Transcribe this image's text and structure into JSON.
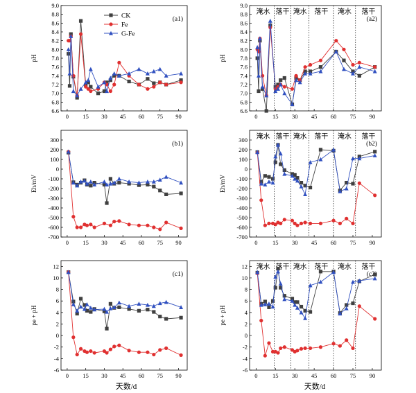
{
  "figure": {
    "xlabel_left": "天数/d",
    "xlabel_right": "天数/d"
  },
  "colors": {
    "CK": "#404040",
    "Fe": "#e03030",
    "G-Fe": "#3050c0"
  },
  "chart_data": [
    {
      "id": "a1",
      "panel_label": "(a1)",
      "type": "line",
      "ylabel": "pH",
      "ylim": [
        6.6,
        9.0
      ],
      "yticks": [
        6.6,
        6.8,
        7.0,
        7.2,
        7.4,
        7.6,
        7.8,
        8.0,
        8.2,
        8.4,
        8.6,
        8.8,
        9.0
      ],
      "xlim": [
        -5,
        97
      ],
      "xticks": [
        0,
        15,
        30,
        45,
        60,
        75,
        90
      ],
      "legend": {
        "position": "top-center",
        "entries": [
          "CK",
          "Fe",
          "G-Fe"
        ]
      },
      "phases": [],
      "series": [
        {
          "name": "CK",
          "marker": "square",
          "x": [
            1,
            2,
            3,
            5,
            8,
            11,
            15,
            17,
            19,
            25,
            30,
            32,
            35,
            38,
            42,
            50,
            58,
            65,
            70,
            75,
            80,
            92
          ],
          "y": [
            7.9,
            7.17,
            8.35,
            7.38,
            6.9,
            8.65,
            7.18,
            7.25,
            7.15,
            7.0,
            7.05,
            7.25,
            7.3,
            7.4,
            7.4,
            7.27,
            7.2,
            7.33,
            7.23,
            7.25,
            7.2,
            7.3
          ]
        },
        {
          "name": "Fe",
          "marker": "circle",
          "x": [
            1,
            2,
            3,
            5,
            8,
            11,
            15,
            17,
            19,
            25,
            30,
            32,
            35,
            38,
            42,
            50,
            58,
            65,
            70,
            75,
            80,
            92
          ],
          "y": [
            8.2,
            8.2,
            8.3,
            7.4,
            6.95,
            8.35,
            7.15,
            7.1,
            7.05,
            7.1,
            7.25,
            7.2,
            7.05,
            7.2,
            7.7,
            7.4,
            7.2,
            7.1,
            7.15,
            7.25,
            7.2,
            7.25
          ]
        },
        {
          "name": "G-Fe",
          "marker": "triangle",
          "x": [
            1,
            2,
            3,
            5,
            8,
            11,
            15,
            17,
            19,
            25,
            30,
            32,
            35,
            38,
            42,
            50,
            58,
            65,
            70,
            75,
            80,
            92
          ],
          "y": [
            8.0,
            7.45,
            8.3,
            7.05,
            6.95,
            7.1,
            7.25,
            7.3,
            7.55,
            7.15,
            7.25,
            7.05,
            7.35,
            7.45,
            7.4,
            7.45,
            7.55,
            7.45,
            7.5,
            7.55,
            7.4,
            7.45
          ]
        }
      ]
    },
    {
      "id": "a2",
      "panel_label": "(a2)",
      "type": "line",
      "ylabel": "pH",
      "ylim": [
        6.6,
        9.0
      ],
      "yticks": [
        6.6,
        6.8,
        7.0,
        7.2,
        7.4,
        7.6,
        7.8,
        8.0,
        8.2,
        8.4,
        8.6,
        8.8,
        9.0
      ],
      "xlim": [
        -5,
        97
      ],
      "xticks": [
        0,
        15,
        30,
        45,
        60,
        75,
        90
      ],
      "phases": [
        "淹水",
        "落干",
        "淹水",
        "落干",
        "淹水",
        "落干"
      ],
      "phase_boundaries": [
        14,
        27,
        41,
        60,
        77
      ],
      "series": [
        {
          "name": "CK",
          "marker": "square",
          "x": [
            1,
            2,
            3,
            5,
            8,
            11,
            15,
            17,
            19,
            22,
            28,
            31,
            34,
            38,
            42,
            50,
            62,
            68,
            75,
            80,
            92
          ],
          "y": [
            7.8,
            7.05,
            8.2,
            7.1,
            6.6,
            8.55,
            7.15,
            7.2,
            7.3,
            7.35,
            6.75,
            7.35,
            7.3,
            7.5,
            7.5,
            7.6,
            7.95,
            7.75,
            7.5,
            7.4,
            7.6
          ]
        },
        {
          "name": "Fe",
          "marker": "circle",
          "x": [
            1,
            2,
            3,
            5,
            8,
            11,
            15,
            17,
            19,
            22,
            28,
            31,
            34,
            38,
            42,
            50,
            62,
            68,
            75,
            80,
            92
          ],
          "y": [
            8.0,
            7.95,
            8.25,
            7.4,
            6.95,
            8.5,
            7.1,
            7.15,
            7.2,
            7.15,
            7.1,
            7.4,
            7.3,
            7.6,
            7.65,
            7.75,
            8.2,
            8.0,
            7.65,
            7.7,
            7.6
          ]
        },
        {
          "name": "G-Fe",
          "marker": "triangle",
          "x": [
            1,
            2,
            3,
            5,
            8,
            11,
            15,
            17,
            19,
            22,
            28,
            31,
            34,
            38,
            42,
            50,
            62,
            68,
            75,
            80,
            92
          ],
          "y": [
            8.05,
            7.4,
            8.25,
            7.15,
            6.95,
            8.65,
            7.05,
            7.1,
            7.2,
            7.0,
            6.75,
            7.3,
            7.25,
            7.45,
            7.45,
            7.5,
            7.95,
            7.55,
            7.45,
            7.6,
            7.5
          ]
        }
      ]
    },
    {
      "id": "b1",
      "panel_label": "(b1)",
      "type": "line",
      "ylabel": "Eh/mV",
      "ylim": [
        -700,
        400
      ],
      "yticks": [
        -700,
        -600,
        -500,
        -400,
        -300,
        -200,
        -100,
        0,
        100,
        200,
        300
      ],
      "xlim": [
        -5,
        97
      ],
      "xticks": [
        0,
        15,
        30,
        45,
        60,
        75,
        90
      ],
      "phases": [],
      "series": [
        {
          "name": "CK",
          "marker": "square",
          "x": [
            1,
            5,
            8,
            11,
            14,
            16,
            19,
            22,
            30,
            32,
            35,
            38,
            42,
            50,
            58,
            65,
            70,
            75,
            80,
            92
          ],
          "y": [
            170,
            -135,
            -160,
            -140,
            -115,
            -160,
            -170,
            -140,
            -160,
            -350,
            -100,
            -150,
            -140,
            -150,
            -165,
            -160,
            -180,
            -220,
            -260,
            -250
          ]
        },
        {
          "name": "Fe",
          "marker": "circle",
          "x": [
            1,
            5,
            8,
            11,
            14,
            16,
            19,
            22,
            30,
            35,
            38,
            42,
            50,
            58,
            65,
            70,
            75,
            80,
            92
          ],
          "y": [
            180,
            -490,
            -600,
            -600,
            -570,
            -580,
            -570,
            -600,
            -560,
            -580,
            -540,
            -535,
            -570,
            -580,
            -580,
            -600,
            -620,
            -550,
            -610
          ]
        },
        {
          "name": "G-Fe",
          "marker": "triangle",
          "x": [
            1,
            5,
            8,
            11,
            14,
            16,
            19,
            22,
            30,
            32,
            35,
            38,
            42,
            50,
            58,
            65,
            70,
            75,
            80,
            92
          ],
          "y": [
            180,
            -140,
            -170,
            -130,
            -120,
            -150,
            -130,
            -160,
            -130,
            -160,
            -150,
            -140,
            -100,
            -130,
            -140,
            -130,
            -130,
            -110,
            -80,
            -140
          ]
        }
      ]
    },
    {
      "id": "b2",
      "panel_label": "(b2)",
      "type": "line",
      "ylabel": "Eh/mV",
      "ylim": [
        -700,
        400
      ],
      "yticks": [
        -700,
        -600,
        -500,
        -400,
        -300,
        -200,
        -100,
        0,
        100,
        200,
        300
      ],
      "xlim": [
        -5,
        97
      ],
      "xticks": [
        0,
        15,
        30,
        45,
        60,
        75,
        90
      ],
      "phases": [
        "淹水",
        "落干",
        "淹水",
        "落干",
        "淹水",
        "落干"
      ],
      "phase_boundaries": [
        14,
        27,
        41,
        60,
        77
      ],
      "series": [
        {
          "name": "CK",
          "marker": "square",
          "x": [
            1,
            4,
            7,
            10,
            13,
            15,
            17,
            19,
            22,
            28,
            30,
            32,
            35,
            38,
            42,
            50,
            60,
            65,
            70,
            75,
            80,
            92
          ],
          "y": [
            175,
            -130,
            -70,
            -80,
            -100,
            70,
            250,
            50,
            -10,
            -50,
            -60,
            -90,
            -140,
            -170,
            -190,
            200,
            190,
            -220,
            -140,
            -150,
            130,
            180
          ]
        },
        {
          "name": "Fe",
          "marker": "circle",
          "x": [
            1,
            4,
            7,
            10,
            13,
            15,
            17,
            19,
            22,
            28,
            30,
            32,
            35,
            38,
            42,
            50,
            60,
            65,
            70,
            75,
            80,
            92
          ],
          "y": [
            170,
            -320,
            -580,
            -560,
            -560,
            -570,
            -550,
            -560,
            -520,
            -530,
            -560,
            -580,
            -560,
            -550,
            -560,
            -560,
            -530,
            -560,
            -510,
            -560,
            -145,
            -270
          ]
        },
        {
          "name": "G-Fe",
          "marker": "triangle",
          "x": [
            1,
            4,
            7,
            10,
            13,
            15,
            17,
            19,
            22,
            28,
            30,
            32,
            35,
            38,
            42,
            50,
            60,
            65,
            70,
            75,
            80,
            92
          ],
          "y": [
            175,
            -150,
            -160,
            -130,
            -140,
            130,
            250,
            160,
            -50,
            -70,
            -100,
            -120,
            -180,
            -260,
            70,
            100,
            200,
            -230,
            -200,
            110,
            110,
            140
          ]
        }
      ]
    },
    {
      "id": "c1",
      "panel_label": "(c1)",
      "type": "line",
      "ylabel": "pe + pH",
      "ylim": [
        -6,
        13
      ],
      "yticks": [
        -6,
        -4,
        -2,
        0,
        2,
        4,
        6,
        8,
        10,
        12
      ],
      "xlim": [
        -5,
        97
      ],
      "xticks": [
        0,
        15,
        30,
        45,
        60,
        75,
        90
      ],
      "phases": [],
      "series": [
        {
          "name": "CK",
          "marker": "square",
          "x": [
            1,
            5,
            8,
            11,
            14,
            16,
            19,
            22,
            30,
            32,
            35,
            38,
            42,
            50,
            58,
            65,
            70,
            75,
            80,
            92
          ],
          "y": [
            11,
            5.9,
            3.8,
            6.4,
            5.3,
            4.3,
            4.1,
            4.6,
            4.2,
            1.2,
            5.5,
            4.8,
            4.9,
            4.6,
            4.3,
            4.5,
            4.1,
            3.3,
            2.9,
            3.1
          ]
        },
        {
          "name": "Fe",
          "marker": "circle",
          "x": [
            1,
            5,
            8,
            11,
            14,
            16,
            19,
            22,
            30,
            32,
            35,
            38,
            42,
            50,
            58,
            65,
            70,
            75,
            80,
            92
          ],
          "y": [
            11,
            -0.3,
            -3.3,
            -2.3,
            -2.7,
            -2.9,
            -2.7,
            -3.0,
            -2.7,
            -3.0,
            -2.4,
            -1.9,
            -1.7,
            -2.6,
            -2.9,
            -2.9,
            -3.3,
            -2.5,
            -2.2,
            -3.4
          ]
        },
        {
          "name": "G-Fe",
          "marker": "triangle",
          "x": [
            1,
            5,
            8,
            11,
            14,
            16,
            19,
            22,
            30,
            32,
            35,
            38,
            42,
            50,
            58,
            65,
            70,
            75,
            80,
            92
          ],
          "y": [
            11,
            5.4,
            4.3,
            5.0,
            4.6,
            5.4,
            4.8,
            4.5,
            4.6,
            4.1,
            4.7,
            4.9,
            5.7,
            5.1,
            5.5,
            5.3,
            5.1,
            5.6,
            5.8,
            4.9
          ]
        }
      ]
    },
    {
      "id": "c2",
      "panel_label": "(c2)",
      "type": "line",
      "ylabel": "pe + pH",
      "ylim": [
        -6,
        13
      ],
      "yticks": [
        -6,
        -4,
        -2,
        0,
        2,
        4,
        6,
        8,
        10,
        12
      ],
      "xlim": [
        -5,
        97
      ],
      "xticks": [
        0,
        15,
        30,
        45,
        60,
        75,
        90
      ],
      "phases": [
        "淹水",
        "落干",
        "淹水",
        "落干",
        "淹水",
        "落干"
      ],
      "phase_boundaries": [
        14,
        27,
        41,
        60,
        77
      ],
      "series": [
        {
          "name": "CK",
          "marker": "square",
          "x": [
            1,
            4,
            7,
            10,
            13,
            15,
            17,
            19,
            22,
            28,
            30,
            32,
            35,
            38,
            42,
            50,
            60,
            65,
            70,
            75,
            80,
            92
          ],
          "y": [
            10.9,
            5.5,
            5.9,
            4.9,
            6.0,
            8.3,
            11.6,
            8.3,
            6.9,
            6.4,
            5.8,
            5.8,
            5.0,
            4.3,
            4.1,
            11.1,
            11.1,
            3.9,
            5.3,
            5.6,
            9.4,
            10.6
          ]
        },
        {
          "name": "Fe",
          "marker": "circle",
          "x": [
            1,
            4,
            7,
            10,
            13,
            15,
            17,
            19,
            22,
            28,
            30,
            32,
            35,
            38,
            42,
            50,
            60,
            65,
            70,
            75,
            80,
            92
          ],
          "y": [
            10.8,
            2.6,
            -3.5,
            -1.3,
            -2.8,
            -2.8,
            -3.0,
            -2.2,
            -2.0,
            -2.5,
            -2.8,
            -2.6,
            -2.3,
            -2.2,
            -2.2,
            -2.0,
            -1.4,
            -1.8,
            -0.8,
            -2.2,
            5.1,
            2.9
          ]
        },
        {
          "name": "G-Fe",
          "marker": "triangle",
          "x": [
            1,
            4,
            7,
            10,
            13,
            15,
            17,
            19,
            22,
            28,
            30,
            32,
            35,
            38,
            42,
            50,
            60,
            65,
            70,
            75,
            80,
            92
          ],
          "y": [
            11.0,
            5.3,
            5.4,
            5.5,
            5.0,
            10.2,
            11.1,
            9.0,
            6.3,
            6.0,
            5.3,
            4.8,
            4.0,
            3.0,
            8.7,
            9.3,
            11.0,
            3.8,
            4.7,
            9.3,
            9.5,
            9.9
          ]
        }
      ]
    }
  ]
}
